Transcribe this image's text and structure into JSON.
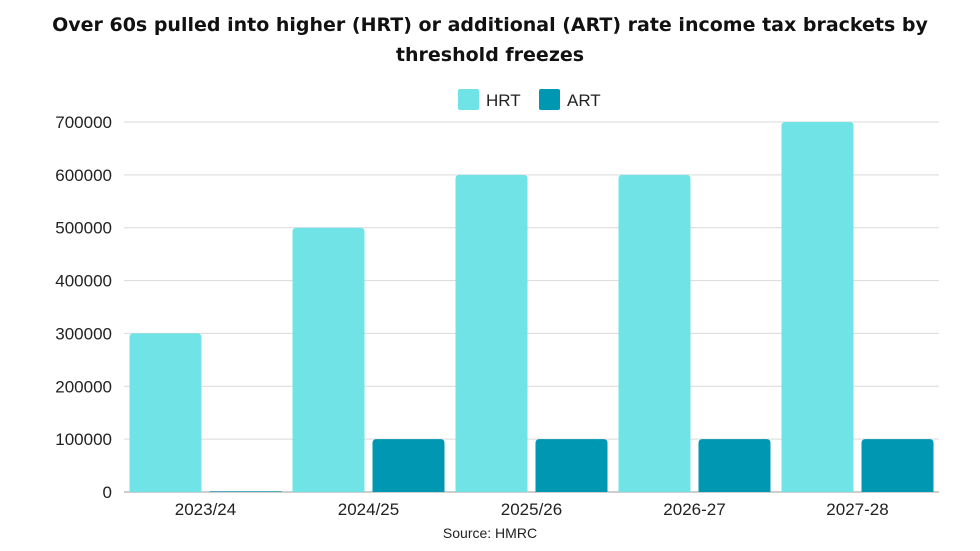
{
  "chart_data": {
    "type": "bar",
    "title": "Over 60s pulled into higher (HRT) or additional (ART) rate income tax brackets by threshold freezes",
    "categories": [
      "2023/24",
      "2024/25",
      "2025/26",
      "2026-27",
      "2027-28"
    ],
    "series": [
      {
        "name": "HRT",
        "color": "#6fe3e6",
        "values": [
          300000,
          500000,
          600000,
          600000,
          700000
        ]
      },
      {
        "name": "ART",
        "color": "#0097b2",
        "values": [
          0,
          100000,
          100000,
          100000,
          100000
        ]
      }
    ],
    "y_ticks": [
      "0",
      "100000",
      "200000",
      "300000",
      "400000",
      "500000",
      "600000",
      "700000"
    ],
    "ylim": [
      0,
      700000
    ],
    "xlabel": "",
    "ylabel": "",
    "legend": "top-center",
    "grid": true,
    "source": "Source: HMRC"
  }
}
